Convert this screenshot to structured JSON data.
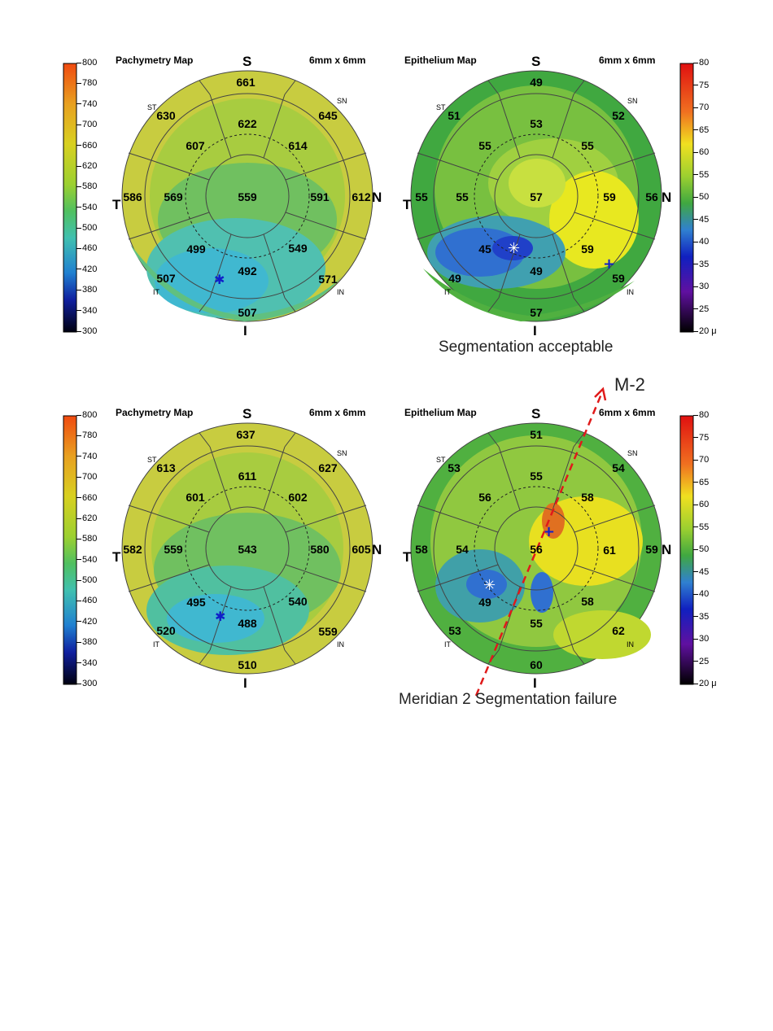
{
  "panels": [
    {
      "title": "Pachymetry Map",
      "scan_size": "6mm x 6mm",
      "labels": {
        "s": "S",
        "i": "I",
        "t": "T",
        "n": "N",
        "st": "ST",
        "sn": "SN",
        "it": "IT",
        "in": "IN"
      },
      "values": {
        "center": "559",
        "inner_s": "622",
        "inner_sn": "614",
        "inner_n": "591",
        "inner_in": "549",
        "inner_i": "492",
        "inner_it": "499",
        "inner_t": "569",
        "inner_st": "607",
        "outer_s": "661",
        "outer_sn": "645",
        "outer_n": "612",
        "outer_in": "571",
        "outer_i": "507",
        "outer_it": "507",
        "outer_t": "586",
        "outer_st": "630"
      }
    },
    {
      "title": "Epithelium Map",
      "scan_size": "6mm x 6mm",
      "labels": {
        "s": "S",
        "i": "I",
        "t": "T",
        "n": "N",
        "st": "ST",
        "sn": "SN",
        "it": "IT",
        "in": "IN"
      },
      "values": {
        "center": "57",
        "inner_s": "53",
        "inner_sn": "55",
        "inner_n": "59",
        "inner_in": "59",
        "inner_i": "49",
        "inner_it": "45",
        "inner_t": "55",
        "inner_st": "55",
        "outer_s": "49",
        "outer_sn": "52",
        "outer_n": "56",
        "outer_in": "59",
        "outer_i": "57",
        "outer_it": "49",
        "outer_t": "55",
        "outer_st": "51"
      },
      "caption": "Segmentation acceptable"
    },
    {
      "title": "Pachymetry Map",
      "scan_size": "6mm x 6mm",
      "labels": {
        "s": "S",
        "i": "I",
        "t": "T",
        "n": "N",
        "st": "ST",
        "sn": "SN",
        "it": "IT",
        "in": "IN"
      },
      "values": {
        "center": "543",
        "inner_s": "611",
        "inner_sn": "602",
        "inner_n": "580",
        "inner_in": "540",
        "inner_i": "488",
        "inner_it": "495",
        "inner_t": "559",
        "inner_st": "601",
        "outer_s": "637",
        "outer_sn": "627",
        "outer_n": "605",
        "outer_in": "559",
        "outer_i": "510",
        "outer_it": "520",
        "outer_t": "582",
        "outer_st": "613"
      }
    },
    {
      "title": "Epithelium Map",
      "scan_size": "6mm x 6mm",
      "labels": {
        "s": "S",
        "i": "I",
        "t": "T",
        "n": "N",
        "st": "ST",
        "sn": "SN",
        "it": "IT",
        "in": "IN"
      },
      "values": {
        "center": "56",
        "inner_s": "55",
        "inner_sn": "58",
        "inner_n": "61",
        "inner_in": "58",
        "inner_i": "55",
        "inner_it": "49",
        "inner_t": "54",
        "inner_st": "56",
        "outer_s": "51",
        "outer_sn": "54",
        "outer_n": "59",
        "outer_in": "62",
        "outer_i": "60",
        "outer_it": "53",
        "outer_t": "58",
        "outer_st": "53"
      },
      "caption": "Meridian 2 Segmentation failure",
      "meridian_label": "M-2"
    }
  ],
  "pachymetry_scale": [
    "800",
    "780",
    "740",
    "700",
    "660",
    "620",
    "580",
    "540",
    "500",
    "460",
    "420",
    "380",
    "340",
    "300"
  ],
  "epithelium_scale": [
    "80",
    "75",
    "70",
    "65",
    "60",
    "55",
    "50",
    "45",
    "40",
    "35",
    "30",
    "25",
    "20 μ"
  ],
  "colors": {
    "annotation_red": "#e01a1a",
    "marker_blue": "#1020c8",
    "map_green": "#6cc040",
    "map_yellow": "#d8d020"
  }
}
